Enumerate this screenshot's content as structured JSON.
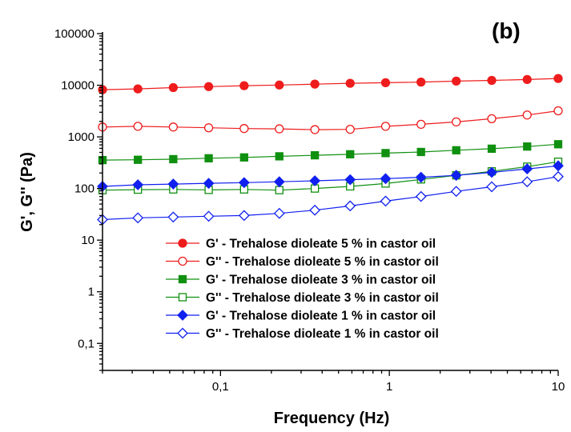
{
  "chart_data": {
    "type": "line",
    "panel_label": "(b)",
    "xlabel": "Frequency (Hz)",
    "ylabel": "G', G'' (Pa)",
    "xscale": "log",
    "yscale": "log",
    "xlim": [
      0.02,
      10
    ],
    "ylim": [
      0.03,
      100000
    ],
    "x_ticks": [
      {
        "value": 0.1,
        "label": "0,1"
      },
      {
        "value": 1,
        "label": "1"
      },
      {
        "value": 10,
        "label": "10"
      }
    ],
    "y_ticks": [
      {
        "value": 0.1,
        "label": "0,1"
      },
      {
        "value": 1,
        "label": "1"
      },
      {
        "value": 10,
        "label": "10"
      },
      {
        "value": 100,
        "label": "100"
      },
      {
        "value": 1000,
        "label": "1000"
      },
      {
        "value": 10000,
        "label": "10000"
      },
      {
        "value": 100000,
        "label": "100000"
      }
    ],
    "legend_position": "bottom-right",
    "x": [
      0.02,
      0.0324,
      0.0525,
      0.0851,
      0.138,
      0.223,
      0.362,
      0.586,
      0.95,
      1.54,
      2.49,
      4.04,
      6.55,
      10
    ],
    "series": [
      {
        "name": "G' - Trehalose dioleate 5 % in castor oil",
        "color": "#ee1c1c",
        "marker": "circle",
        "filled": true,
        "values": [
          8200,
          8500,
          9000,
          9400,
          9800,
          10100,
          10500,
          10900,
          11200,
          11500,
          12000,
          12400,
          12900,
          13500
        ]
      },
      {
        "name": "G'' - Trehalose dioleate 5 % in castor oil",
        "color": "#ee1c1c",
        "marker": "circle",
        "filled": false,
        "values": [
          1550,
          1600,
          1550,
          1500,
          1450,
          1430,
          1380,
          1400,
          1600,
          1750,
          1950,
          2250,
          2650,
          3200
        ]
      },
      {
        "name": "G' - Trehalose dioleate 3 % in castor oil",
        "color": "#109010",
        "marker": "square",
        "filled": true,
        "values": [
          355,
          360,
          370,
          385,
          400,
          420,
          440,
          460,
          485,
          510,
          550,
          590,
          650,
          720
        ]
      },
      {
        "name": "G'' - Trehalose dioleate 3 % in castor oil",
        "color": "#109010",
        "marker": "square",
        "filled": false,
        "values": [
          93,
          95,
          96,
          94,
          96,
          93,
          100,
          110,
          125,
          150,
          180,
          215,
          265,
          330
        ]
      },
      {
        "name": "G' - Trehalose dioleate 1 % in castor oil",
        "color": "#1020ee",
        "marker": "diamond",
        "filled": true,
        "values": [
          110,
          118,
          122,
          126,
          130,
          135,
          141,
          148,
          155,
          165,
          180,
          205,
          240,
          275
        ]
      },
      {
        "name": "G'' - Trehalose dioleate 1 % in castor oil",
        "color": "#1020ee",
        "marker": "diamond",
        "filled": false,
        "values": [
          25,
          27,
          28,
          29,
          30,
          33,
          38,
          46,
          57,
          70,
          88,
          108,
          135,
          170
        ]
      }
    ]
  }
}
